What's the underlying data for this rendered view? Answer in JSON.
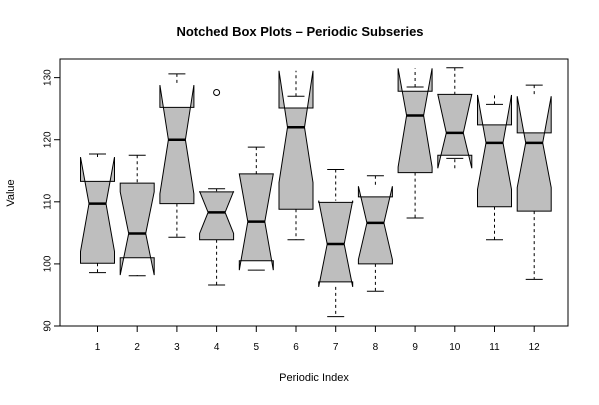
{
  "chart_data": {
    "type": "boxplot",
    "variant": "notched",
    "title": "Notched Box Plots – Periodic Subseries",
    "xlabel": "Periodic Index",
    "ylabel": "Value",
    "ylim": [
      90,
      133
    ],
    "yticks": [
      90,
      100,
      110,
      120,
      130
    ],
    "categories": [
      "1",
      "2",
      "3",
      "4",
      "5",
      "6",
      "7",
      "8",
      "9",
      "10",
      "11",
      "12"
    ],
    "boxes": [
      {
        "label": "1",
        "whisker_low": 98.6,
        "q1": 100.1,
        "median": 109.7,
        "q3": 113.3,
        "whisker_high": 117.7,
        "notch_low": 102.0,
        "notch_high": 117.2,
        "outliers": []
      },
      {
        "label": "2",
        "whisker_low": 98.1,
        "q1": 101.0,
        "median": 104.9,
        "q3": 113.0,
        "whisker_high": 117.5,
        "notch_low": 98.2,
        "notch_high": 111.6,
        "outliers": []
      },
      {
        "label": "3",
        "whisker_low": 104.3,
        "q1": 109.7,
        "median": 120.0,
        "q3": 125.2,
        "whisker_high": 130.6,
        "notch_low": 111.3,
        "notch_high": 128.8,
        "outliers": []
      },
      {
        "label": "4",
        "whisker_low": 96.6,
        "q1": 103.9,
        "median": 108.3,
        "q3": 111.6,
        "whisker_high": 112.1,
        "notch_low": 104.9,
        "notch_high": 111.7,
        "outliers": [
          127.6
        ]
      },
      {
        "label": "5",
        "whisker_low": 99.0,
        "q1": 100.5,
        "median": 106.8,
        "q3": 114.5,
        "whisker_high": 118.8,
        "notch_low": 99.0,
        "notch_high": 114.5,
        "outliers": []
      },
      {
        "label": "6",
        "whisker_low": 103.9,
        "q1": 108.8,
        "median": 122.0,
        "q3": 125.1,
        "whisker_high": 127.0,
        "notch_low": 113.1,
        "notch_high": 131.1,
        "outliers": []
      },
      {
        "label": "7",
        "whisker_low": 91.5,
        "q1": 97.1,
        "median": 103.2,
        "q3": 109.9,
        "whisker_high": 115.2,
        "notch_low": 96.3,
        "notch_high": 110.2,
        "outliers": []
      },
      {
        "label": "8",
        "whisker_low": 95.6,
        "q1": 100.0,
        "median": 106.6,
        "q3": 110.8,
        "whisker_high": 114.2,
        "notch_low": 100.7,
        "notch_high": 112.5,
        "outliers": []
      },
      {
        "label": "9",
        "whisker_low": 107.4,
        "q1": 114.7,
        "median": 123.9,
        "q3": 127.8,
        "whisker_high": 128.5,
        "notch_low": 115.6,
        "notch_high": 131.5,
        "outliers": []
      },
      {
        "label": "10",
        "whisker_low": 117.0,
        "q1": 117.5,
        "median": 121.1,
        "q3": 127.3,
        "whisker_high": 131.6,
        "notch_low": 115.4,
        "notch_high": 127.3,
        "outliers": []
      },
      {
        "label": "11",
        "whisker_low": 103.9,
        "q1": 109.2,
        "median": 119.5,
        "q3": 122.4,
        "whisker_high": 125.7,
        "notch_low": 112.0,
        "notch_high": 127.2,
        "outliers": []
      },
      {
        "label": "12",
        "whisker_low": 97.5,
        "q1": 108.5,
        "median": 119.5,
        "q3": 121.1,
        "whisker_high": 128.8,
        "notch_low": 112.3,
        "notch_high": 127.0,
        "outliers": []
      }
    ],
    "colors": {
      "box_fill": "#bebebe",
      "stroke": "#000000",
      "background": "#ffffff"
    },
    "grid": false,
    "legend": "none"
  }
}
